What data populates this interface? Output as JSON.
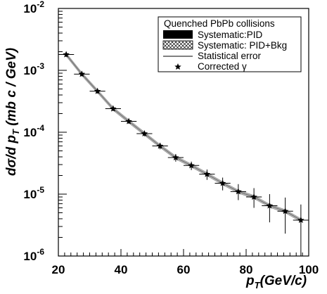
{
  "chart_data": {
    "type": "scatter",
    "xlabel_main": "p",
    "xlabel_sub": "T",
    "xlabel_unit": "(GeV/c)",
    "ylabel_main": "dσ/d p",
    "ylabel_sub": "T",
    "ylabel_unit": " (mb c / GeV)",
    "xlim": [
      20,
      100
    ],
    "ylim": [
      1e-06,
      0.01
    ],
    "yscale": "log",
    "x_ticks": [
      "20",
      "40",
      "60",
      "80",
      "100"
    ],
    "y_ticks": [
      {
        "base": "10",
        "exp": "-6"
      },
      {
        "base": "10",
        "exp": "-5"
      },
      {
        "base": "10",
        "exp": "-4"
      },
      {
        "base": "10",
        "exp": "-3"
      },
      {
        "base": "10",
        "exp": "-2"
      }
    ],
    "legend": {
      "title": "Quenched PbPb collisions",
      "entries": [
        {
          "label": "Systematic:PID",
          "style": "filled-box"
        },
        {
          "label": "Systematic: PID+Bkg",
          "style": "hatched-box"
        },
        {
          "label": "Statistical error",
          "style": "line"
        },
        {
          "label": "Corrected γ",
          "style": "star-marker"
        }
      ]
    },
    "series": [
      {
        "marker": "star",
        "x": [
          22.5,
          27.5,
          32.5,
          37.5,
          42.5,
          47.5,
          52.5,
          57.5,
          62.5,
          67.5,
          72.5,
          77.5,
          82.5,
          87.5,
          92.5,
          97.5
        ],
        "y": [
          0.0018,
          0.00087,
          0.00046,
          0.00024,
          0.00015,
          9.5e-05,
          6e-05,
          3.9e-05,
          2.9e-05,
          2.1e-05,
          1.5e-05,
          1.1e-05,
          9e-06,
          6.5e-06,
          5.3e-06,
          3.8e-06
        ],
        "x_err": 2.5,
        "y_err_low": [
          0.00016,
          7e-05,
          3.8e-05,
          2e-05,
          1.3e-05,
          9e-06,
          7e-06,
          5.5e-06,
          4.5e-06,
          4e-06,
          3.5e-06,
          3e-06,
          3e-06,
          3e-06,
          3e-06,
          2.8e-06
        ],
        "y_err_high": [
          0.00016,
          7e-05,
          3.8e-05,
          2e-05,
          1.3e-05,
          9e-06,
          7e-06,
          5.5e-06,
          4.5e-06,
          4e-06,
          3.5e-06,
          3.5e-06,
          3.5e-06,
          3.5e-06,
          3.5e-06,
          3e-06
        ]
      }
    ],
    "grid": false,
    "legend_position": "top-right",
    "colors": {
      "marker": "#000000",
      "band": "#888888"
    }
  }
}
